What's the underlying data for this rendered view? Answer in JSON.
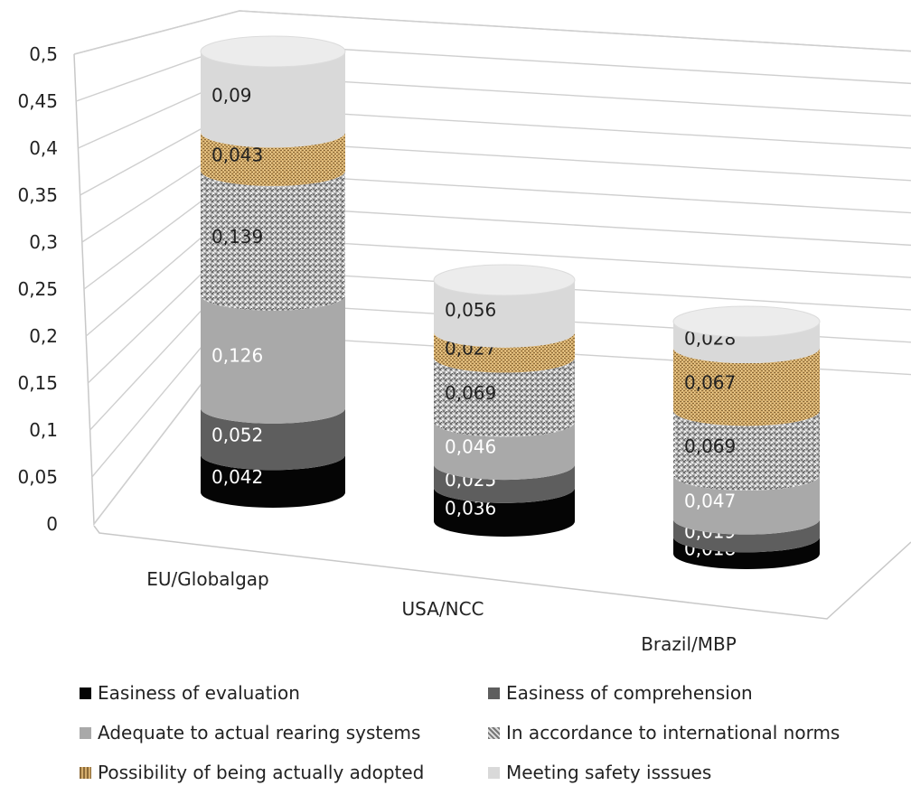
{
  "chart_data": {
    "type": "bar",
    "style": "3d-stacked-cylinder",
    "title": "",
    "xlabel": "",
    "ylabel": "",
    "ylim": [
      0,
      0.5
    ],
    "y_ticks": [
      "0",
      "0,05",
      "0,1",
      "0,15",
      "0,2",
      "0,25",
      "0,3",
      "0,35",
      "0,4",
      "0,45",
      "0,5"
    ],
    "grid": true,
    "legend_position": "bottom",
    "categories": [
      "EU/Globalgap",
      "USA/NCC",
      "Brazil/MBP"
    ],
    "series": [
      {
        "name": "Easiness of evaluation",
        "values": [
          0.042,
          0.036,
          0.018
        ],
        "labels": [
          "0,042",
          "0,036",
          "0,018"
        ],
        "color": "#050505",
        "label_color": "#ffffff"
      },
      {
        "name": "Easiness of comprehension",
        "values": [
          0.052,
          0.025,
          0.019
        ],
        "labels": [
          "0,052",
          "0,025",
          "0,019"
        ],
        "color": "#5e5e5e",
        "label_color": "#ffffff"
      },
      {
        "name": "Adequate to actual rearing systems",
        "values": [
          0.126,
          0.046,
          0.047
        ],
        "labels": [
          "0,126",
          "0,046",
          "0,047"
        ],
        "color": "#a9a9a9",
        "label_color": "#ffffff"
      },
      {
        "name": "In accordance to international norms",
        "values": [
          0.139,
          0.069,
          0.069
        ],
        "labels": [
          "0,139",
          "0,069",
          "0,069"
        ],
        "color": "#b9b9b9",
        "pattern": "granite",
        "label_color": "#222222"
      },
      {
        "name": "Possibility of being actually adopted",
        "values": [
          0.043,
          0.027,
          0.067
        ],
        "labels": [
          "0,043",
          "0,027",
          "0,067"
        ],
        "color": "#c8a05c",
        "pattern": "burlap",
        "label_color": "#222222"
      },
      {
        "name": "Meeting safety isssues",
        "values": [
          0.09,
          0.056,
          0.028
        ],
        "labels": [
          "0,09",
          "0,056",
          "0,028"
        ],
        "color": "#d9d9d9",
        "label_color": "#222222"
      }
    ]
  }
}
